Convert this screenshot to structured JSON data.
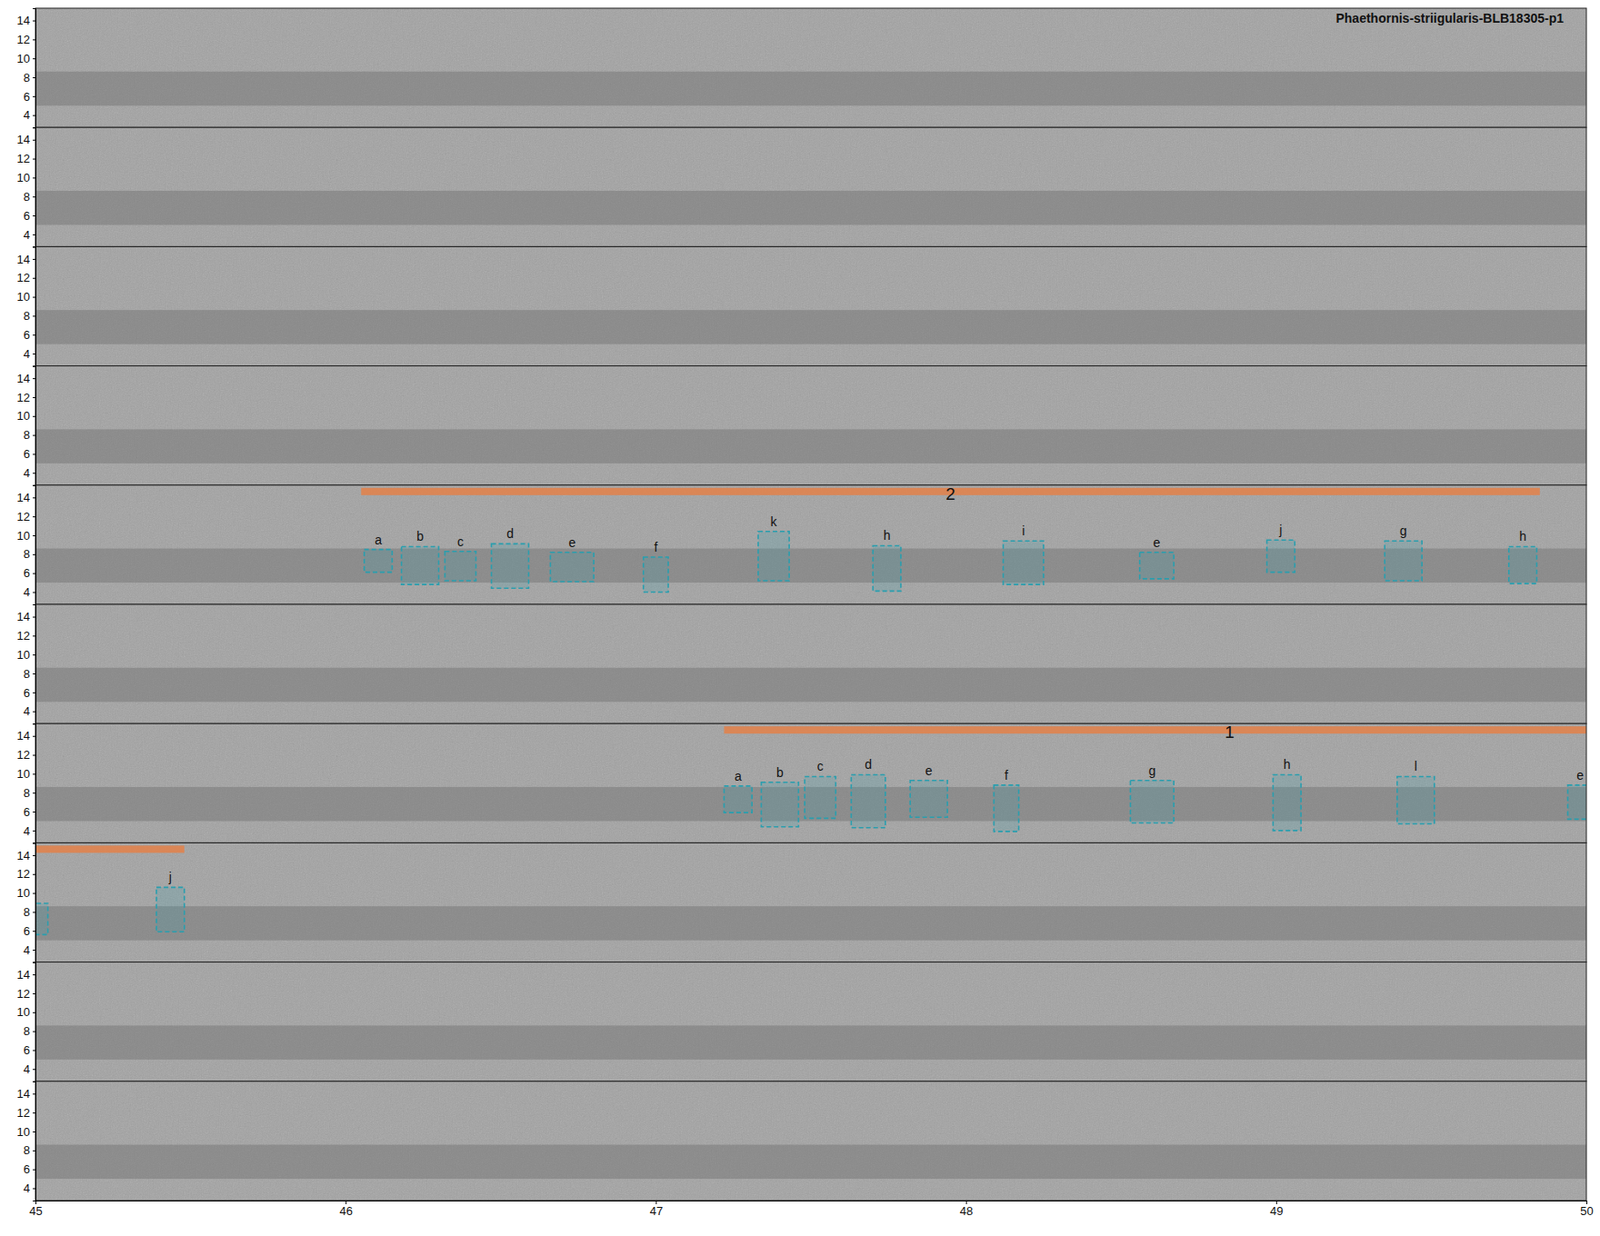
{
  "chart_data": {
    "type": "spectrogram",
    "title": "Phaethornis-striigularis-BLB18305-p1",
    "panels": 10,
    "xlim": [
      45,
      50
    ],
    "xticks": [
      45,
      46,
      47,
      48,
      49,
      50
    ],
    "ylim": [
      2.7,
      15.3
    ],
    "yticks": [
      4,
      6,
      8,
      10,
      12,
      14
    ],
    "background_band": [
      5.0,
      8.6
    ],
    "boxes": [
      {
        "panel": 4,
        "label": "a",
        "x0": 46.06,
        "x1": 46.15,
        "y0": 6.1,
        "y1": 8.5
      },
      {
        "panel": 4,
        "label": "b",
        "x0": 46.18,
        "x1": 46.3,
        "y0": 4.8,
        "y1": 8.8
      },
      {
        "panel": 4,
        "label": "c",
        "x0": 46.32,
        "x1": 46.42,
        "y0": 5.2,
        "y1": 8.3
      },
      {
        "panel": 4,
        "label": "d",
        "x0": 46.47,
        "x1": 46.59,
        "y0": 4.4,
        "y1": 9.1
      },
      {
        "panel": 4,
        "label": "e",
        "x0": 46.66,
        "x1": 46.8,
        "y0": 5.1,
        "y1": 8.2
      },
      {
        "panel": 4,
        "label": "f",
        "x0": 46.96,
        "x1": 47.04,
        "y0": 4.0,
        "y1": 7.7
      },
      {
        "panel": 4,
        "label": "k",
        "x0": 47.33,
        "x1": 47.43,
        "y0": 5.2,
        "y1": 10.4
      },
      {
        "panel": 4,
        "label": "h",
        "x0": 47.7,
        "x1": 47.79,
        "y0": 4.1,
        "y1": 8.9
      },
      {
        "panel": 4,
        "label": "i",
        "x0": 48.12,
        "x1": 48.25,
        "y0": 4.8,
        "y1": 9.4
      },
      {
        "panel": 4,
        "label": "e",
        "x0": 48.56,
        "x1": 48.67,
        "y0": 5.4,
        "y1": 8.2
      },
      {
        "panel": 4,
        "label": "j",
        "x0": 48.97,
        "x1": 49.06,
        "y0": 6.1,
        "y1": 9.5
      },
      {
        "panel": 4,
        "label": "g",
        "x0": 49.35,
        "x1": 49.47,
        "y0": 5.2,
        "y1": 9.4
      },
      {
        "panel": 4,
        "label": "h",
        "x0": 49.75,
        "x1": 49.84,
        "y0": 4.9,
        "y1": 8.8
      },
      {
        "panel": 6,
        "label": "a",
        "x0": 47.22,
        "x1": 47.31,
        "y0": 5.9,
        "y1": 8.7
      },
      {
        "panel": 6,
        "label": "b",
        "x0": 47.34,
        "x1": 47.46,
        "y0": 4.4,
        "y1": 9.1
      },
      {
        "panel": 6,
        "label": "c",
        "x0": 47.48,
        "x1": 47.58,
        "y0": 5.3,
        "y1": 9.7
      },
      {
        "panel": 6,
        "label": "d",
        "x0": 47.63,
        "x1": 47.74,
        "y0": 4.3,
        "y1": 9.9
      },
      {
        "panel": 6,
        "label": "e",
        "x0": 47.82,
        "x1": 47.94,
        "y0": 5.4,
        "y1": 9.3
      },
      {
        "panel": 6,
        "label": "f",
        "x0": 48.09,
        "x1": 48.17,
        "y0": 3.9,
        "y1": 8.8
      },
      {
        "panel": 6,
        "label": "g",
        "x0": 48.53,
        "x1": 48.67,
        "y0": 4.8,
        "y1": 9.3
      },
      {
        "panel": 6,
        "label": "h",
        "x0": 48.99,
        "x1": 49.08,
        "y0": 4.0,
        "y1": 9.9
      },
      {
        "panel": 6,
        "label": "l",
        "x0": 49.39,
        "x1": 49.51,
        "y0": 4.7,
        "y1": 9.7
      },
      {
        "panel": 6,
        "label": "e",
        "x0": 49.94,
        "x1": 50.02,
        "y0": 5.2,
        "y1": 8.8
      },
      {
        "panel": 7,
        "label": null,
        "x0": 44.98,
        "x1": 45.04,
        "y0": 5.6,
        "y1": 8.9
      },
      {
        "panel": 7,
        "label": "j",
        "x0": 45.39,
        "x1": 45.48,
        "y0": 5.9,
        "y1": 10.6
      }
    ],
    "songs": [
      {
        "label": "2",
        "start_panel": 4,
        "x0": 46.05,
        "end_panel": 4,
        "x1": 49.85
      },
      {
        "label": "1",
        "start_panel": 6,
        "x0": 47.22,
        "end_panel": 7,
        "x1": 45.48
      }
    ]
  }
}
